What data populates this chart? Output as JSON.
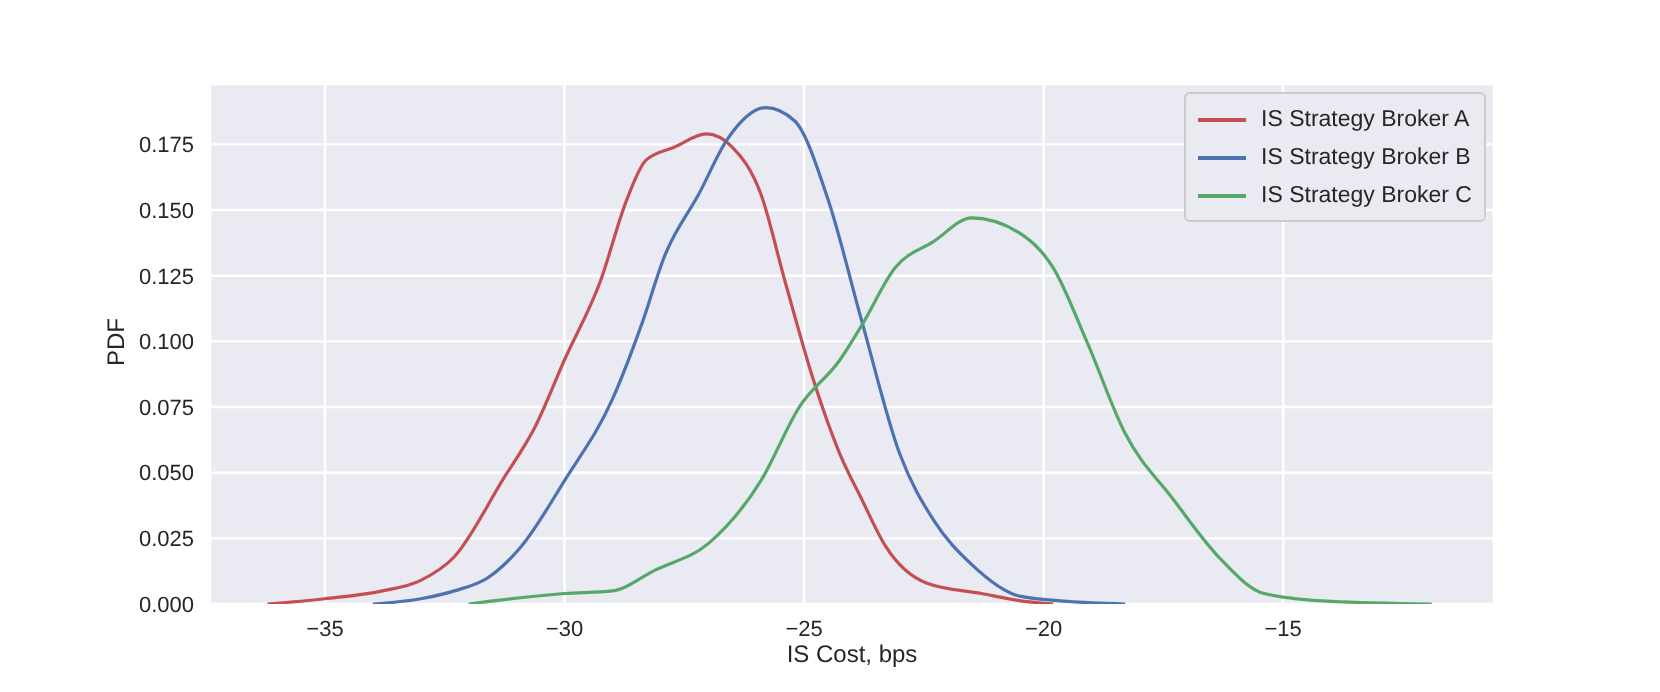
{
  "chart_data": {
    "type": "line",
    "xlabel": "IS Cost, bps",
    "ylabel": "PDF",
    "xlim": [
      -37.4,
      -10.6
    ],
    "ylim": [
      0,
      0.198
    ],
    "xticks": [
      {
        "value": -35,
        "label": "−35"
      },
      {
        "value": -30,
        "label": "−30"
      },
      {
        "value": -25,
        "label": "−25"
      },
      {
        "value": -20,
        "label": "−20"
      },
      {
        "value": -15,
        "label": "−15"
      }
    ],
    "yticks": [
      {
        "value": 0,
        "label": "0.000"
      },
      {
        "value": 0.025,
        "label": "0.025"
      },
      {
        "value": 0.05,
        "label": "0.050"
      },
      {
        "value": 0.075,
        "label": "0.075"
      },
      {
        "value": 0.1,
        "label": "0.100"
      },
      {
        "value": 0.125,
        "label": "0.125"
      },
      {
        "value": 0.15,
        "label": "0.150"
      },
      {
        "value": 0.175,
        "label": "0.175"
      }
    ],
    "grid": true,
    "legend": "top right",
    "marker": "none",
    "line_style": "solid",
    "series": [
      {
        "name": "IS Strategy Broker A",
        "color": "#c44e52",
        "x": [
          -36.2,
          -35,
          -33.8,
          -33,
          -32.3,
          -31.3,
          -30.6,
          -30,
          -29.25,
          -28.7,
          -28.3,
          -27.7,
          -27.04,
          -26.5,
          -25.9,
          -25.4,
          -24.8,
          -24.25,
          -23.8,
          -23.3,
          -22.45,
          -21.3,
          -20.4,
          -19.8
        ],
        "values": [
          0,
          0.002,
          0.005,
          0.009,
          0.018,
          0.047,
          0.068,
          0.093,
          0.123,
          0.154,
          0.169,
          0.174,
          0.179,
          0.174,
          0.156,
          0.123,
          0.085,
          0.057,
          0.04,
          0.022,
          0.008,
          0.004,
          0.001,
          0
        ]
      },
      {
        "name": "IS Strategy Broker B",
        "color": "#4c72b0",
        "x": [
          -34,
          -33,
          -32.3,
          -31.6,
          -30.9,
          -30,
          -29,
          -28.4,
          -27.9,
          -27.2,
          -26.6,
          -25.8,
          -25.2,
          -24.5,
          -23.8,
          -23,
          -22.3,
          -21.5,
          -20.5,
          -19.5,
          -18.3
        ],
        "values": [
          0,
          0.002,
          0.005,
          0.01,
          0.022,
          0.047,
          0.078,
          0.106,
          0.133,
          0.156,
          0.177,
          0.189,
          0.184,
          0.154,
          0.108,
          0.057,
          0.032,
          0.015,
          0.003,
          0.001,
          0
        ]
      },
      {
        "name": "IS Strategy Broker C",
        "color": "#55a868",
        "x": [
          -32,
          -30,
          -29,
          -28.1,
          -27,
          -25.9,
          -25.1,
          -24.25,
          -23.8,
          -23.1,
          -22.3,
          -21.5,
          -20.4,
          -19.8,
          -19.1,
          -18.3,
          -17.3,
          -16.3,
          -15.4,
          -14,
          -11.9
        ],
        "values": [
          0,
          0.004,
          0.005,
          0.013,
          0.023,
          0.047,
          0.075,
          0.093,
          0.106,
          0.128,
          0.138,
          0.147,
          0.14,
          0.128,
          0.1,
          0.065,
          0.04,
          0.017,
          0.004,
          0.001,
          0
        ]
      }
    ]
  }
}
